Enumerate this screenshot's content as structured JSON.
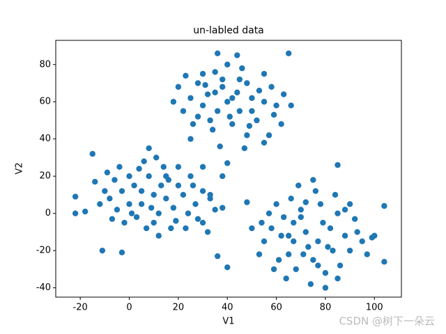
{
  "chart_data": {
    "type": "scatter",
    "title": "un-labled data",
    "xlabel": "V1",
    "ylabel": "V2",
    "color": "#1f77b4",
    "xlim": [
      -30,
      111
    ],
    "ylim": [
      -45,
      93
    ],
    "xticks": [
      -20,
      0,
      20,
      40,
      60,
      80,
      100
    ],
    "yticks": [
      -40,
      -20,
      0,
      20,
      40,
      60,
      80
    ],
    "x": [
      10,
      5,
      15,
      0,
      20,
      8,
      12,
      3,
      18,
      22,
      -3,
      6,
      14,
      25,
      27,
      -5,
      0,
      10,
      17,
      2,
      9,
      13,
      24,
      -8,
      -2,
      30,
      28,
      7,
      20,
      -6,
      4,
      16,
      11,
      -10,
      33,
      1,
      19,
      -12,
      -14,
      23,
      5,
      15,
      -4,
      26,
      8,
      35,
      -7,
      12,
      30,
      -9,
      -22,
      -22,
      -15,
      -11,
      -3,
      -18,
      38,
      32,
      40,
      35,
      45,
      30,
      50,
      38,
      42,
      33,
      48,
      55,
      25,
      28,
      52,
      36,
      44,
      58,
      22,
      30,
      46,
      60,
      34,
      48,
      40,
      55,
      26,
      62,
      38,
      50,
      42,
      32,
      20,
      25,
      57,
      44,
      36,
      65,
      63,
      18,
      47,
      37,
      28,
      53,
      41,
      31,
      49,
      23,
      59,
      35,
      45,
      66,
      38,
      40,
      30,
      33,
      55,
      72,
      67,
      77,
      62,
      82,
      70,
      75,
      65,
      85,
      88,
      58,
      60,
      78,
      90,
      68,
      80,
      55,
      73,
      70,
      83,
      64,
      76,
      92,
      95,
      57,
      69,
      84,
      74,
      86,
      61,
      67,
      79,
      71,
      88,
      66,
      93,
      53,
      81,
      63,
      77,
      59,
      97,
      72,
      85,
      99,
      54,
      75,
      65,
      80,
      90,
      104,
      104,
      85,
      50,
      40,
      36,
      48,
      100
    ],
    "values": [
      10,
      12,
      8,
      5,
      15,
      20,
      0,
      -2,
      3,
      10,
      12,
      28,
      25,
      20,
      5,
      2,
      20,
      -5,
      -8,
      15,
      3,
      15,
      0,
      8,
      -5,
      12,
      -3,
      -8,
      25,
      18,
      24,
      18,
      30,
      12,
      8,
      0,
      -4,
      5,
      17,
      -8,
      5,
      20,
      25,
      15,
      35,
      2,
      -3,
      -12,
      -5,
      22,
      0,
      9,
      32,
      -20,
      -21,
      1,
      3,
      -10,
      60,
      65,
      55,
      58,
      62,
      72,
      48,
      50,
      70,
      60,
      62,
      70,
      50,
      55,
      65,
      68,
      55,
      75,
      78,
      58,
      45,
      42,
      80,
      75,
      48,
      48,
      68,
      55,
      62,
      64,
      68,
      40,
      42,
      85,
      86,
      86,
      64,
      60,
      35,
      36,
      52,
      66,
      52,
      69,
      47,
      74,
      53,
      76,
      72,
      58,
      20,
      27,
      25,
      10,
      38,
      -10,
      -5,
      -15,
      -12,
      -8,
      2,
      -25,
      -22,
      0,
      -12,
      -8,
      5,
      5,
      -20,
      -30,
      -32,
      -15,
      -18,
      -2,
      -20,
      -35,
      12,
      -3,
      -15,
      0,
      15,
      10,
      -38,
      -28,
      -25,
      -15,
      -5,
      -22,
      2,
      8,
      -10,
      -22,
      -18,
      -2,
      -28,
      -30,
      -22,
      6,
      -35,
      -13,
      -5,
      18,
      -12,
      -40,
      5,
      4,
      -26,
      26,
      -8,
      -29,
      -23,
      6,
      -12
    ]
  },
  "watermark": "CSDN @树下一朵云"
}
